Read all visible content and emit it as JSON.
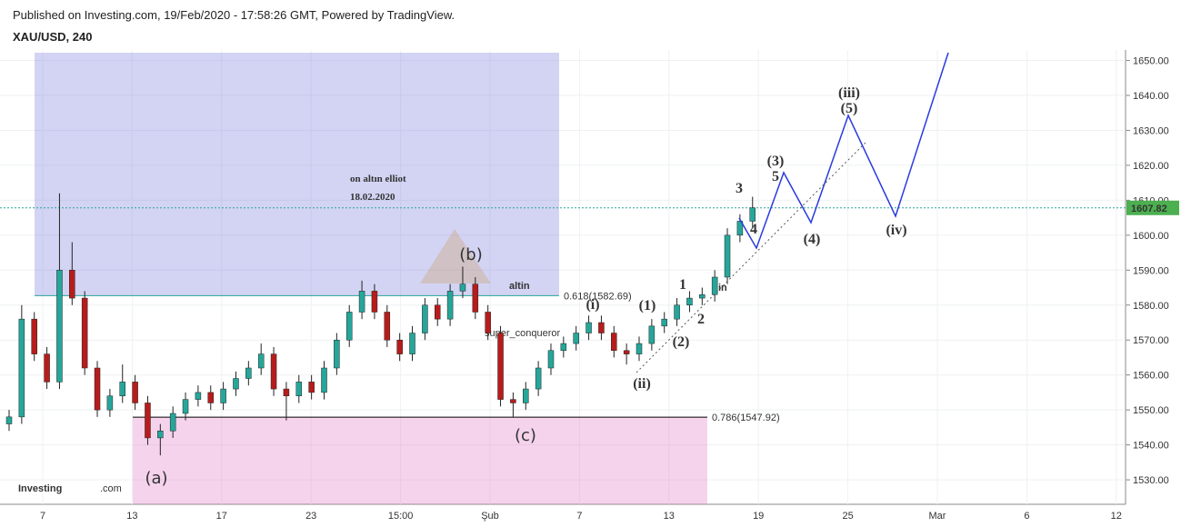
{
  "chart_data": {
    "type": "candlestick",
    "header": "Published on Investing.com, 19/Feb/2020 - 17:58:26 GMT, Powered by TradingView.",
    "symbol": "XAU/USD, 240",
    "annotation": [
      "on altın elliot",
      "18.02.2020"
    ],
    "watermark": [
      "altin",
      "in",
      "super_conqueror"
    ],
    "logo": [
      "Investing",
      ".com"
    ],
    "x_tick_labels": [
      "7",
      "13",
      "17",
      "23",
      "15:00",
      "Şub",
      "7",
      "13",
      "19",
      "25",
      "Mar",
      "6",
      "12"
    ],
    "ylim": [
      1523,
      1653
    ],
    "yticks": [
      {
        "value": 1530,
        "label": "1530.00"
      },
      {
        "value": 1540,
        "label": "1540.00"
      },
      {
        "value": 1550,
        "label": "1550.00"
      },
      {
        "value": 1560,
        "label": "1560.00"
      },
      {
        "value": 1570,
        "label": "1570.00"
      },
      {
        "value": 1580,
        "label": "1580.00"
      },
      {
        "value": 1590,
        "label": "1590.00"
      },
      {
        "value": 1600,
        "label": "1600.00"
      },
      {
        "value": 1610,
        "label": "1610.00"
      },
      {
        "value": 1620,
        "label": "1620.00"
      },
      {
        "value": 1630,
        "label": "1630.00"
      },
      {
        "value": 1640,
        "label": "1640.00"
      },
      {
        "value": 1650,
        "label": "1650.00"
      }
    ],
    "grid": true,
    "up_color": "#26a69a",
    "down_color": "#b71c1c",
    "levels": [
      {
        "value": 1582.69,
        "label": "0.618(1582.69)",
        "color": "#26a69a"
      },
      {
        "value": 1547.92,
        "label": "0.786(1547.92)",
        "color": "#000000"
      }
    ],
    "open": [
      1546,
      1548,
      1576,
      1566,
      1558,
      1590,
      1582,
      1562,
      1550,
      1554,
      1558,
      1552,
      1542,
      1544,
      1549,
      1553,
      1555,
      1552,
      1556,
      1559,
      1562,
      1566,
      1556,
      1554,
      1558,
      1555,
      1562,
      1570,
      1578,
      1584,
      1578,
      1570,
      1566,
      1572,
      1580,
      1576,
      1584,
      1586,
      1578,
      1572,
      1553,
      1552,
      1556,
      1562,
      1567,
      1569,
      1572,
      1575,
      1572,
      1567,
      1566,
      1569,
      1574,
      1576,
      1580,
      1582,
      1583,
      1588,
      1600,
      1604
    ],
    "high": [
      1550,
      1580,
      1578,
      1568,
      1612,
      1598,
      1584,
      1564,
      1556,
      1563,
      1560,
      1554,
      1546,
      1551,
      1555,
      1557,
      1557,
      1558,
      1561,
      1564,
      1569,
      1568,
      1558,
      1560,
      1560,
      1564,
      1572,
      1580,
      1587,
      1586,
      1580,
      1572,
      1574,
      1582,
      1582,
      1586,
      1591,
      1588,
      1580,
      1574,
      1555,
      1558,
      1564,
      1569,
      1571,
      1574,
      1577,
      1577,
      1574,
      1569,
      1571,
      1576,
      1578,
      1582,
      1584,
      1585,
      1590,
      1602,
      1606,
      1611
    ],
    "low": [
      1544,
      1546,
      1564,
      1556,
      1556,
      1580,
      1560,
      1548,
      1548,
      1552,
      1550,
      1540,
      1537,
      1542,
      1547,
      1551,
      1550,
      1550,
      1554,
      1557,
      1560,
      1554,
      1547,
      1552,
      1553,
      1553,
      1560,
      1568,
      1576,
      1576,
      1568,
      1564,
      1564,
      1570,
      1574,
      1574,
      1582,
      1576,
      1570,
      1551,
      1548,
      1550,
      1554,
      1560,
      1565,
      1567,
      1570,
      1570,
      1565,
      1563,
      1564,
      1567,
      1572,
      1574,
      1578,
      1580,
      1581,
      1586,
      1598,
      1602
    ],
    "close": [
      1548,
      1576,
      1566,
      1558,
      1590,
      1582,
      1562,
      1550,
      1554,
      1558,
      1552,
      1542,
      1544,
      1549,
      1553,
      1555,
      1552,
      1556,
      1559,
      1562,
      1566,
      1556,
      1554,
      1558,
      1555,
      1562,
      1570,
      1578,
      1584,
      1578,
      1570,
      1566,
      1572,
      1580,
      1576,
      1584,
      1586,
      1578,
      1572,
      1553,
      1552,
      1556,
      1562,
      1567,
      1569,
      1572,
      1575,
      1572,
      1567,
      1566,
      1569,
      1574,
      1576,
      1580,
      1582,
      1583,
      1588,
      1600,
      1604,
      1607.82
    ],
    "waves": [
      {
        "text": "(a)",
        "color": "#e53935"
      },
      {
        "text": "(b)",
        "color": "#e53935"
      },
      {
        "text": "(c)",
        "color": "#e53935"
      },
      {
        "text": "(i)",
        "color": "#1a1aa6"
      },
      {
        "text": "(ii)",
        "color": "#1a1aa6"
      },
      {
        "text": "(iii)",
        "color": "#1a1aa6"
      },
      {
        "text": "(iv)",
        "color": "#1a1aa6"
      },
      {
        "text": "(1)",
        "color": "#111111"
      },
      {
        "text": "(2)",
        "color": "#111111"
      },
      {
        "text": "(3)",
        "color": "#111111"
      },
      {
        "text": "(4)",
        "color": "#111111"
      },
      {
        "text": "(5)",
        "color": "#111111"
      },
      {
        "text": "1",
        "color": "#d50000"
      },
      {
        "text": "2",
        "color": "#ef5350"
      },
      {
        "text": "3",
        "color": "#d50000"
      },
      {
        "text": "4",
        "color": "#d50000"
      },
      {
        "text": "5",
        "color": "#d50000"
      }
    ]
  }
}
